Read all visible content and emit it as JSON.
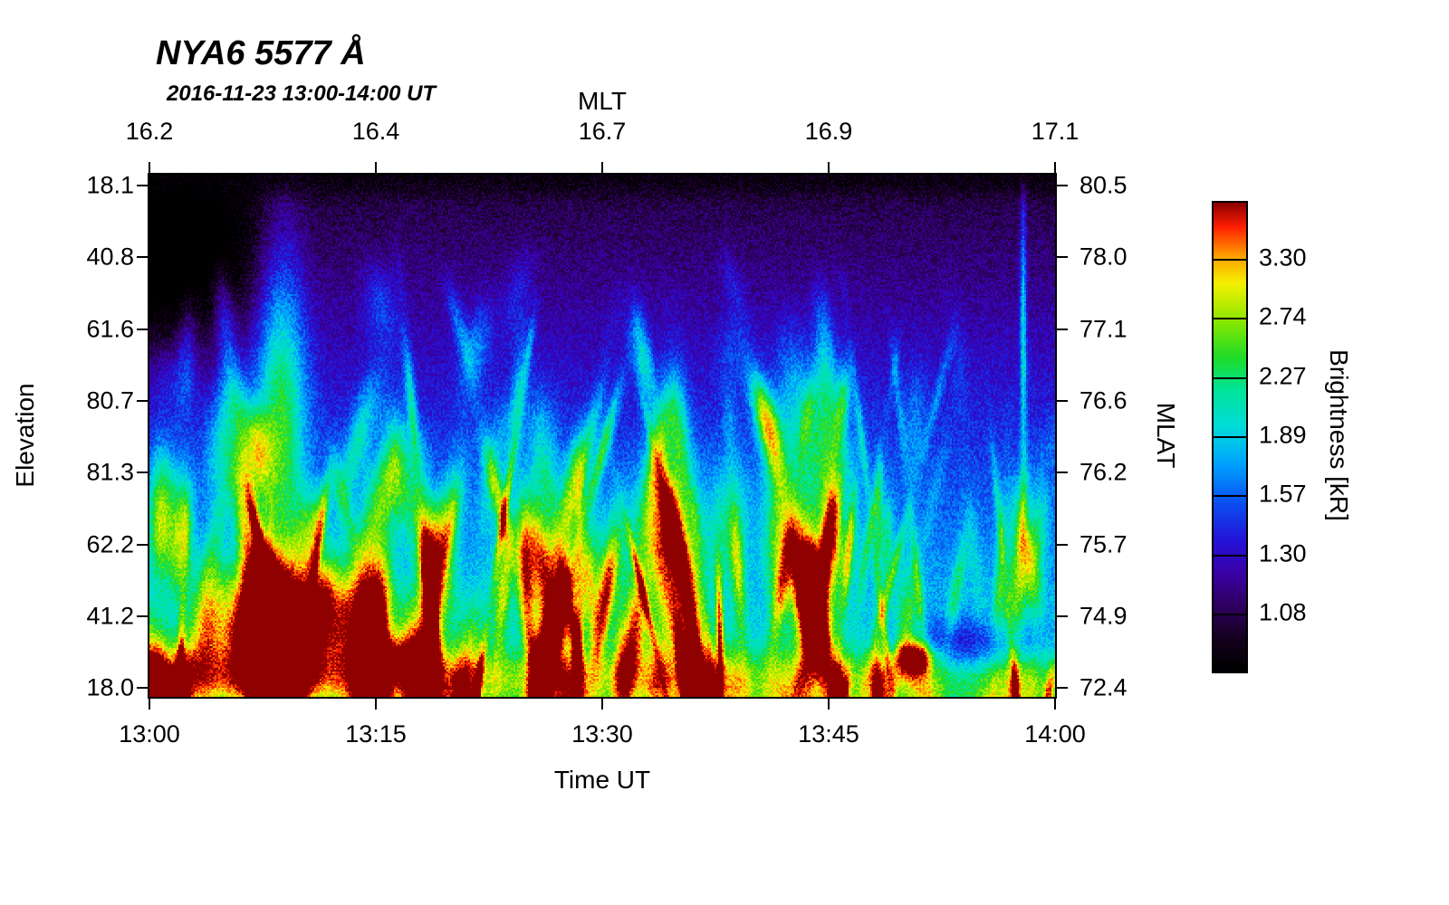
{
  "title": "NYA6 5577 Å",
  "subtitle": "2016-11-23 13:00-14:00 UT",
  "chart_data": {
    "type": "heatmap",
    "title": "NYA6 5577 Å",
    "subtitle": "2016-11-23 13:00-14:00 UT",
    "axes": {
      "top": {
        "label": "MLT",
        "ticks": [
          {
            "label": "16.2",
            "pos": 0.0
          },
          {
            "label": "16.4",
            "pos": 0.25
          },
          {
            "label": "16.7",
            "pos": 0.5
          },
          {
            "label": "16.9",
            "pos": 0.75
          },
          {
            "label": "17.1",
            "pos": 1.0
          }
        ]
      },
      "bottom": {
        "label": "Time UT",
        "ticks": [
          {
            "label": "13:00",
            "pos": 0.0
          },
          {
            "label": "13:15",
            "pos": 0.25
          },
          {
            "label": "13:30",
            "pos": 0.5
          },
          {
            "label": "13:45",
            "pos": 0.75
          },
          {
            "label": "14:00",
            "pos": 1.0
          }
        ]
      },
      "left": {
        "label": "Elevation",
        "ticks": [
          {
            "label": "18.1",
            "pos": 0.021
          },
          {
            "label": "40.8",
            "pos": 0.158
          },
          {
            "label": "61.6",
            "pos": 0.296
          },
          {
            "label": "80.7",
            "pos": 0.433
          },
          {
            "label": "81.3",
            "pos": 0.571
          },
          {
            "label": "62.2",
            "pos": 0.708
          },
          {
            "label": "41.2",
            "pos": 0.846
          },
          {
            "label": "18.0",
            "pos": 0.983
          }
        ]
      },
      "right": {
        "label": "MLAT",
        "ticks": [
          {
            "label": "80.5",
            "pos": 0.021
          },
          {
            "label": "78.0",
            "pos": 0.158
          },
          {
            "label": "77.1",
            "pos": 0.296
          },
          {
            "label": "76.6",
            "pos": 0.433
          },
          {
            "label": "76.2",
            "pos": 0.571
          },
          {
            "label": "75.7",
            "pos": 0.708
          },
          {
            "label": "74.9",
            "pos": 0.846
          },
          {
            "label": "72.4",
            "pos": 0.983
          }
        ]
      }
    },
    "colorbar": {
      "label": "Brightness [kR]",
      "ticks": [
        {
          "label": "3.30",
          "pos": 0.122
        },
        {
          "label": "2.74",
          "pos": 0.248
        },
        {
          "label": "2.27",
          "pos": 0.374
        },
        {
          "label": "1.89",
          "pos": 0.5
        },
        {
          "label": "1.57",
          "pos": 0.626
        },
        {
          "label": "1.30",
          "pos": 0.752
        },
        {
          "label": "1.08",
          "pos": 0.878
        }
      ],
      "colormap_stops": [
        {
          "v": 0.0,
          "c": "#000000"
        },
        {
          "v": 0.07,
          "c": "#14001e"
        },
        {
          "v": 0.14,
          "c": "#2e0060"
        },
        {
          "v": 0.21,
          "c": "#3a00a8"
        },
        {
          "v": 0.28,
          "c": "#2414d8"
        },
        {
          "v": 0.36,
          "c": "#0a50f0"
        },
        {
          "v": 0.44,
          "c": "#00a0ff"
        },
        {
          "v": 0.52,
          "c": "#00dcdc"
        },
        {
          "v": 0.6,
          "c": "#00e49b"
        },
        {
          "v": 0.67,
          "c": "#1edc28"
        },
        {
          "v": 0.75,
          "c": "#8ce800"
        },
        {
          "v": 0.83,
          "c": "#f5f000"
        },
        {
          "v": 0.89,
          "c": "#ff9c00"
        },
        {
          "v": 0.95,
          "c": "#ff1e00"
        },
        {
          "v": 1.0,
          "c": "#8f0000"
        }
      ]
    },
    "keogram": {
      "description": "All-sky imager keogram of 557.7 nm auroral brightness vs elevation and time; black/dark at top edge, blue background with slanted cyan-green auroral rays, bright yellow-orange band along the bottom left half, intense red surge near 13:07 UT low elevation, small red patch near 13:43 UT, thin bright vertical ray near 13:58 UT",
      "hotspots": [
        {
          "name": "main-red-surge-1307UT",
          "u": 0.135,
          "v": 0.86,
          "su": 0.048,
          "sv": 0.11,
          "amp": 0.95
        },
        {
          "name": "surge-core-1307UT",
          "u": 0.13,
          "v": 0.92,
          "su": 0.03,
          "sv": 0.06,
          "amp": 0.4
        },
        {
          "name": "bright-ray-1307UT",
          "u": 0.145,
          "v": 0.42,
          "su": 0.028,
          "sv": 0.34,
          "amp": 0.4
        },
        {
          "name": "yellow-patch-1313UT",
          "u": 0.22,
          "v": 0.85,
          "su": 0.04,
          "sv": 0.1,
          "amp": 0.45
        },
        {
          "name": "orange-patch-1316UT",
          "u": 0.27,
          "v": 0.93,
          "su": 0.035,
          "sv": 0.05,
          "amp": 0.4
        },
        {
          "name": "green-cluster-1322UT",
          "u": 0.46,
          "v": 0.75,
          "su": 0.06,
          "sv": 0.12,
          "amp": 0.25
        },
        {
          "name": "green-cluster-1333UT",
          "u": 0.575,
          "v": 0.7,
          "su": 0.05,
          "sv": 0.15,
          "amp": 0.25
        },
        {
          "name": "cyan-fan-1340UT",
          "u": 0.73,
          "v": 0.6,
          "su": 0.05,
          "sv": 0.2,
          "amp": 0.2
        },
        {
          "name": "red-spot-1343UT",
          "u": 0.845,
          "v": 0.925,
          "su": 0.02,
          "sv": 0.03,
          "amp": 0.6
        },
        {
          "name": "thin-vertical-ray-1358UT",
          "u": 0.965,
          "v": 0.28,
          "su": 0.0035,
          "sv": 0.26,
          "amp": 0.32
        },
        {
          "name": "dark-band-bottom-right",
          "u": 0.9,
          "v": 0.9,
          "su": 0.1,
          "sv": 0.05,
          "amp": -0.22
        },
        {
          "name": "dark-upper-left-gap",
          "u": 0.02,
          "v": 0.15,
          "su": 0.1,
          "sv": 0.18,
          "amp": -0.3
        }
      ],
      "bottom_band": {
        "v": 0.965,
        "sv": 0.055,
        "amp_left": 0.28,
        "amp_right": 0.1
      }
    }
  }
}
